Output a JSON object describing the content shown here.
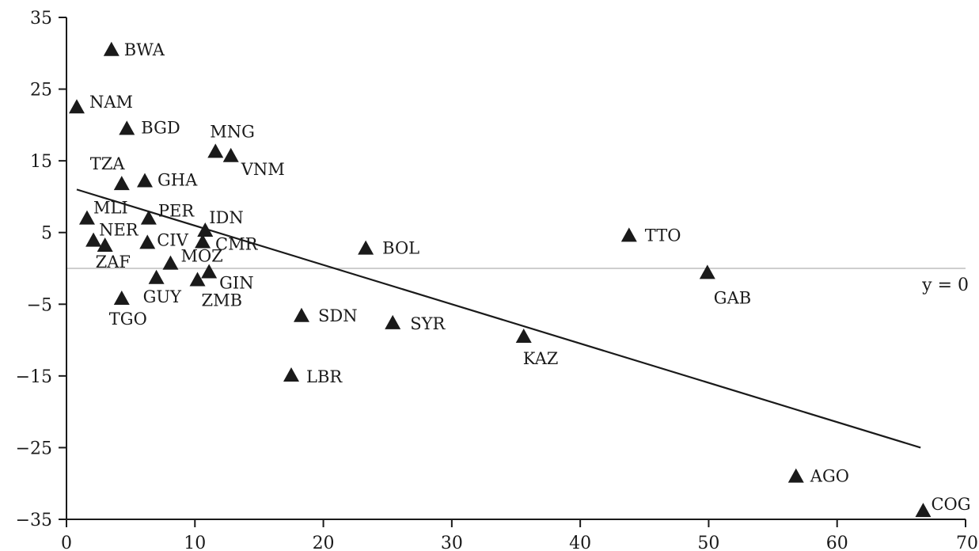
{
  "chart_data": {
    "type": "scatter",
    "xlim": [
      0,
      70
    ],
    "ylim": [
      -35,
      35
    ],
    "x_ticks": [
      0,
      10,
      20,
      30,
      40,
      50,
      60,
      70
    ],
    "y_ticks": [
      35,
      25,
      15,
      5,
      -5,
      -15,
      -25,
      -35
    ],
    "x_tick_labels": [
      "0",
      "10",
      "20",
      "30",
      "40",
      "50",
      "60",
      "70"
    ],
    "y_tick_labels": [
      "35",
      "25",
      "15",
      "5",
      "−5",
      "−15",
      "−25",
      "−35"
    ],
    "grid": false,
    "marker": "triangle",
    "colors": {
      "marker": "#1a1a1a",
      "fit_line": "#1a1a1a",
      "zero_line": "#bdbdbd"
    },
    "points": [
      {
        "label": "BWA",
        "x": 3.5,
        "y": 30.5
      },
      {
        "label": "NAM",
        "x": 0.8,
        "y": 22.5
      },
      {
        "label": "BGD",
        "x": 4.7,
        "y": 19.5
      },
      {
        "label": "MNG",
        "x": 11.6,
        "y": 16.3
      },
      {
        "label": "VNM",
        "x": 12.8,
        "y": 15.7
      },
      {
        "label": "TZA",
        "x": 4.3,
        "y": 11.8
      },
      {
        "label": "GHA",
        "x": 6.1,
        "y": 12.2
      },
      {
        "label": "MLI",
        "x": 1.6,
        "y": 7.0
      },
      {
        "label": "PER",
        "x": 6.4,
        "y": 7.0
      },
      {
        "label": "IDN",
        "x": 10.8,
        "y": 5.3
      },
      {
        "label": "NER",
        "x": 2.1,
        "y": 3.9
      },
      {
        "label": "CIV",
        "x": 6.3,
        "y": 3.6
      },
      {
        "label": "CMR",
        "x": 10.6,
        "y": 3.7
      },
      {
        "label": "ZAF",
        "x": 3.0,
        "y": 3.2
      },
      {
        "label": "MOZ",
        "x": 8.1,
        "y": 0.7
      },
      {
        "label": "GIN",
        "x": 11.1,
        "y": -0.5
      },
      {
        "label": "GUY",
        "x": 7.0,
        "y": -1.3
      },
      {
        "label": "ZMB",
        "x": 10.2,
        "y": -1.6
      },
      {
        "label": "TGO",
        "x": 4.3,
        "y": -4.2
      },
      {
        "label": "SDN",
        "x": 18.3,
        "y": -6.6
      },
      {
        "label": "LBR",
        "x": 17.5,
        "y": -14.9
      },
      {
        "label": "BOL",
        "x": 23.3,
        "y": 2.8
      },
      {
        "label": "SYR",
        "x": 25.4,
        "y": -7.6
      },
      {
        "label": "KAZ",
        "x": 35.6,
        "y": -9.5
      },
      {
        "label": "TTO",
        "x": 43.8,
        "y": 4.6
      },
      {
        "label": "GAB",
        "x": 49.9,
        "y": -0.6
      },
      {
        "label": "AGO",
        "x": 56.8,
        "y": -29.0
      },
      {
        "label": "COG",
        "x": 66.7,
        "y": -33.8
      }
    ],
    "fit_line": {
      "x": [
        0.8,
        66.5
      ],
      "y": [
        11.0,
        -25.0
      ]
    },
    "reference_line": {
      "y": 0,
      "label": "y = 0"
    }
  }
}
